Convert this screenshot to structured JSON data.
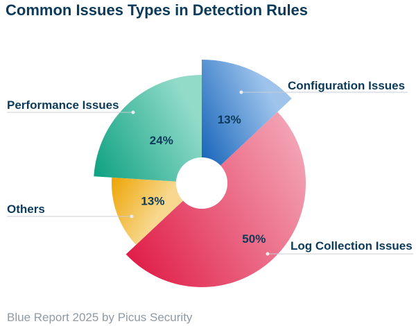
{
  "title": "Common Issues Types in Detection Rules",
  "footer": "Blue Report 2025 by Picus Security",
  "chart_data": {
    "type": "pie",
    "title": "Common Issues Types in Detection Rules",
    "slices": [
      {
        "label": "Configuration Issues",
        "value": 13,
        "value_label": "13%",
        "start_color": "#0a5bb5",
        "end_color": "#9ec4ec"
      },
      {
        "label": "Log Collection Issues",
        "value": 50,
        "value_label": "50%",
        "start_color": "#e01e48",
        "end_color": "#f3a3b4"
      },
      {
        "label": "Others",
        "value": 13,
        "value_label": "13%",
        "start_color": "#eea70b",
        "end_color": "#f7d88e"
      },
      {
        "label": "Performance Issues",
        "value": 24,
        "value_label": "24%",
        "start_color": "#0ea181",
        "end_color": "#92dbc9"
      }
    ],
    "style": "exploded-radial-donut",
    "legend": "none"
  }
}
